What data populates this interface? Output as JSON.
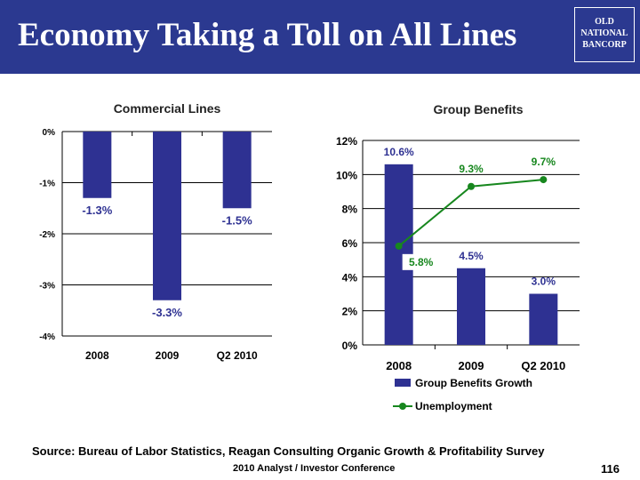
{
  "slide": {
    "title": "Economy Taking a Toll on All Lines",
    "logo_lines": [
      "OLD",
      "NATIONAL",
      "BANCORP"
    ],
    "source": "Source: Bureau of Labor Statistics, Reagan Consulting Organic Growth & Profitability Survey",
    "conference": "2010 Analyst / Investor Conference",
    "page_number": "116"
  },
  "colors": {
    "header": "#2B3990",
    "bar": "#2E3192",
    "line": "#17871E",
    "bar_label": "#2E3192",
    "line_label": "#17871E"
  },
  "chart_data": [
    {
      "type": "bar",
      "title": "Commercial Lines",
      "categories": [
        "2008",
        "2009",
        "Q2 2010"
      ],
      "series": [
        {
          "values": [
            -1.3,
            -3.3,
            -1.5
          ]
        }
      ],
      "data_labels": [
        "-1.3%",
        "-3.3%",
        "-1.5%"
      ],
      "ylim": [
        -4,
        0
      ],
      "yticks": [
        "0%",
        "-1%",
        "-2%",
        "-3%",
        "-4%"
      ],
      "grid": true
    },
    {
      "type": "bar",
      "title": "Group Benefits",
      "categories": [
        "2008",
        "2009",
        "Q2 2010"
      ],
      "series": [
        {
          "name": "Group Benefits Growth",
          "type": "bar",
          "values": [
            10.6,
            4.5,
            3.0
          ],
          "labels": [
            "10.6%",
            "4.5%",
            "3.0%"
          ]
        },
        {
          "name": "Unemployment",
          "type": "line",
          "values": [
            5.8,
            9.3,
            9.7
          ],
          "labels": [
            "5.8%",
            "9.3%",
            "9.7%"
          ]
        }
      ],
      "ylim": [
        0,
        12
      ],
      "yticks": [
        "0%",
        "2%",
        "4%",
        "6%",
        "8%",
        "10%",
        "12%"
      ],
      "grid": true,
      "legend": "bottom"
    }
  ]
}
